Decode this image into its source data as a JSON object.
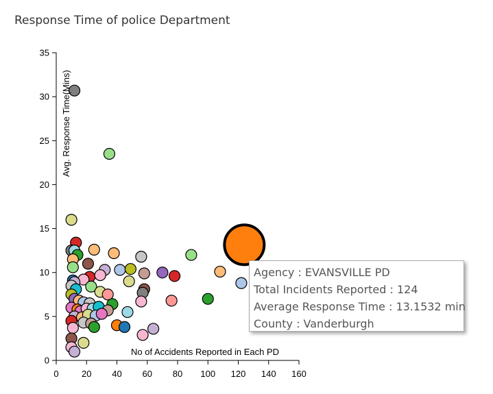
{
  "chart_data": {
    "type": "scatter",
    "title": "Response Time of police Department",
    "xlabel": "No of Accidents Reported in Each PD",
    "ylabel": "Avg. Response Time(Mins)",
    "xlim": [
      0,
      160
    ],
    "ylim": [
      0,
      35
    ],
    "x_ticks": [
      "0",
      "20",
      "40",
      "60",
      "80",
      "100",
      "120",
      "140",
      "160"
    ],
    "y_ticks": [
      "0",
      "5",
      "10",
      "15",
      "20",
      "25",
      "30",
      "35"
    ],
    "grid": false,
    "points": [
      {
        "x": 12,
        "y": 30.7,
        "color": "#7f7f7f"
      },
      {
        "x": 35,
        "y": 23.5,
        "color": "#98df8a"
      },
      {
        "x": 10,
        "y": 16,
        "color": "#dbdb8d"
      },
      {
        "x": 13,
        "y": 13.4,
        "color": "#d62728"
      },
      {
        "x": 10,
        "y": 12.5,
        "color": "#7f7f7f"
      },
      {
        "x": 12,
        "y": 12.5,
        "color": "#9edae5"
      },
      {
        "x": 14,
        "y": 12,
        "color": "#2ca02c"
      },
      {
        "x": 25,
        "y": 12.6,
        "color": "#ffbb78"
      },
      {
        "x": 38,
        "y": 12.2,
        "color": "#ffbb78"
      },
      {
        "x": 56,
        "y": 11.8,
        "color": "#c7c7c7"
      },
      {
        "x": 89,
        "y": 12,
        "color": "#98df8a"
      },
      {
        "x": 11,
        "y": 11.5,
        "color": "#ffbb78"
      },
      {
        "x": 21,
        "y": 11,
        "color": "#8c564b"
      },
      {
        "x": 11,
        "y": 10.6,
        "color": "#98df8a"
      },
      {
        "x": 32,
        "y": 10.3,
        "color": "#c5b0d5"
      },
      {
        "x": 42,
        "y": 10.3,
        "color": "#aec7e8"
      },
      {
        "x": 49,
        "y": 10.4,
        "color": "#bcbd22"
      },
      {
        "x": 58,
        "y": 9.9,
        "color": "#c49c94"
      },
      {
        "x": 70,
        "y": 10,
        "color": "#9467bd"
      },
      {
        "x": 78,
        "y": 9.6,
        "color": "#d62728"
      },
      {
        "x": 108,
        "y": 10.1,
        "color": "#ffbb78"
      },
      {
        "x": 22,
        "y": 9.5,
        "color": "#d62728"
      },
      {
        "x": 29,
        "y": 9.7,
        "color": "#f7b6d2"
      },
      {
        "x": 18,
        "y": 9.2,
        "color": "#f7b6d2"
      },
      {
        "x": 11,
        "y": 9.1,
        "color": "#1f77b4"
      },
      {
        "x": 12,
        "y": 8.9,
        "color": "#c5b0d5"
      },
      {
        "x": 48,
        "y": 9,
        "color": "#dbdb8d"
      },
      {
        "x": 23,
        "y": 8.4,
        "color": "#98df8a"
      },
      {
        "x": 10,
        "y": 8.5,
        "color": "#c7c7c7"
      },
      {
        "x": 13,
        "y": 8.1,
        "color": "#17becf"
      },
      {
        "x": 58,
        "y": 8.1,
        "color": "#8c564b"
      },
      {
        "x": 29,
        "y": 7.8,
        "color": "#dbdb8d"
      },
      {
        "x": 34,
        "y": 7.5,
        "color": "#ff9896"
      },
      {
        "x": 57,
        "y": 7.7,
        "color": "#7f7f7f"
      },
      {
        "x": 10,
        "y": 7.5,
        "color": "#bcbd22"
      },
      {
        "x": 12,
        "y": 7,
        "color": "#9467bd"
      },
      {
        "x": 15,
        "y": 6.8,
        "color": "#ffbb78"
      },
      {
        "x": 18,
        "y": 6.6,
        "color": "#aec7e8"
      },
      {
        "x": 22,
        "y": 6.5,
        "color": "#c7c7c7"
      },
      {
        "x": 37,
        "y": 6.4,
        "color": "#2ca02c"
      },
      {
        "x": 56,
        "y": 6.7,
        "color": "#f7b6d2"
      },
      {
        "x": 76,
        "y": 6.8,
        "color": "#ff9896"
      },
      {
        "x": 100,
        "y": 7,
        "color": "#2ca02c"
      },
      {
        "x": 10,
        "y": 6,
        "color": "#e377c2"
      },
      {
        "x": 14,
        "y": 5.8,
        "color": "#ff7f0e"
      },
      {
        "x": 16,
        "y": 5.6,
        "color": "#e377c2"
      },
      {
        "x": 20,
        "y": 5.9,
        "color": "#f7b6d2"
      },
      {
        "x": 24,
        "y": 5.9,
        "color": "#9edae5"
      },
      {
        "x": 28,
        "y": 6.1,
        "color": "#17becf"
      },
      {
        "x": 34,
        "y": 5.7,
        "color": "#c49c94"
      },
      {
        "x": 47,
        "y": 5.5,
        "color": "#9edae5"
      },
      {
        "x": 12,
        "y": 5,
        "color": "#c5b0d5"
      },
      {
        "x": 17,
        "y": 4.9,
        "color": "#ffbb78"
      },
      {
        "x": 21,
        "y": 5.2,
        "color": "#dbdb8d"
      },
      {
        "x": 26,
        "y": 5.1,
        "color": "#aec7e8"
      },
      {
        "x": 30,
        "y": 5.3,
        "color": "#e377c2"
      },
      {
        "x": 10,
        "y": 4.5,
        "color": "#d62728"
      },
      {
        "x": 18,
        "y": 4.3,
        "color": "#c7c7c7"
      },
      {
        "x": 23,
        "y": 4.2,
        "color": "#c49c94"
      },
      {
        "x": 25,
        "y": 3.8,
        "color": "#2ca02c"
      },
      {
        "x": 40,
        "y": 4,
        "color": "#ff7f0e"
      },
      {
        "x": 45,
        "y": 3.8,
        "color": "#1f77b4"
      },
      {
        "x": 11,
        "y": 3.7,
        "color": "#f7b6d2"
      },
      {
        "x": 64,
        "y": 3.6,
        "color": "#c5b0d5"
      },
      {
        "x": 57,
        "y": 2.9,
        "color": "#f7b6d2"
      },
      {
        "x": 10,
        "y": 2.5,
        "color": "#8c564b"
      },
      {
        "x": 18,
        "y": 2,
        "color": "#dbdb8d"
      },
      {
        "x": 10,
        "y": 1.5,
        "color": "#f7b6d2"
      },
      {
        "x": 12,
        "y": 1,
        "color": "#c5b0d5"
      },
      {
        "x": 122,
        "y": 8.8,
        "color": "#aec7e8"
      }
    ],
    "highlight": {
      "x": 124,
      "y": 13.1532,
      "color": "#ff7f0e"
    },
    "tooltip": {
      "agency": "Agency : EVANSVILLE PD",
      "incidents": "Total Incidents Reported : 124",
      "avg_time": "Average Response Time : 13.1532 min",
      "county": "County : Vanderburgh"
    }
  }
}
